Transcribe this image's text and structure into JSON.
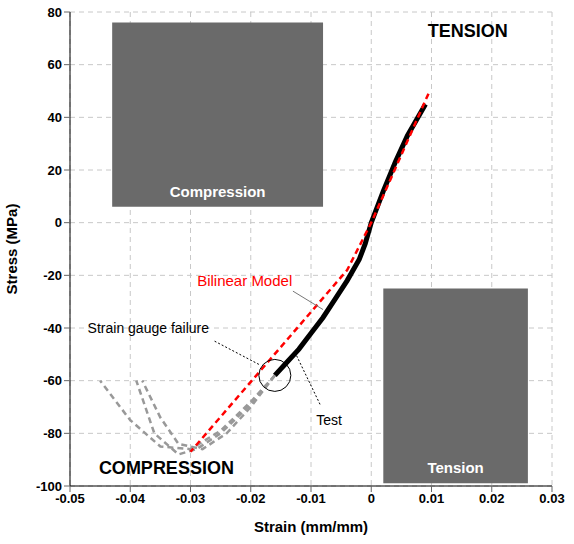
{
  "chart_data": {
    "type": "line",
    "xlabel": "Strain (mm/mm)",
    "ylabel": "Stress (MPa)",
    "xlim": [
      -0.05,
      0.03
    ],
    "ylim": [
      -100,
      80
    ],
    "xticks": [
      -0.05,
      -0.04,
      -0.03,
      -0.02,
      -0.01,
      0,
      0.01,
      0.02,
      0.03
    ],
    "yticks": [
      -100,
      -80,
      -60,
      -40,
      -20,
      0,
      20,
      40,
      60,
      80
    ],
    "grid": true,
    "series": [
      {
        "name": "Test",
        "color": "#000000",
        "line_style": "solid",
        "x": [
          0.009,
          0.008,
          0.006,
          0.004,
          0.002,
          0,
          -0.001,
          -0.002,
          -0.004,
          -0.006,
          -0.008,
          -0.01,
          -0.012,
          -0.014,
          -0.016
        ],
        "values": [
          45,
          41,
          33,
          23,
          12,
          0,
          -8,
          -14,
          -22,
          -29,
          -36,
          -42,
          -48,
          -53,
          -58
        ]
      },
      {
        "color": "#999999",
        "line_style": "dashed",
        "x": [
          -0.016,
          -0.02,
          -0.025,
          -0.03,
          -0.035,
          -0.04,
          -0.045
        ],
        "values": [
          -58,
          -68,
          -79,
          -86,
          -85,
          -75,
          -60
        ]
      },
      {
        "color": "#999999",
        "line_style": "dashed",
        "x": [
          -0.016,
          -0.02,
          -0.025,
          -0.029,
          -0.032,
          -0.036,
          -0.039
        ],
        "values": [
          -58,
          -69,
          -80,
          -86,
          -88,
          -80,
          -60
        ]
      },
      {
        "color": "#999999",
        "line_style": "dashed",
        "x": [
          -0.016,
          -0.02,
          -0.024,
          -0.028,
          -0.032,
          -0.035,
          -0.038
        ],
        "values": [
          -58,
          -70,
          -80,
          -86,
          -84,
          -74,
          -60
        ]
      },
      {
        "name": "Bilinear Model",
        "color": "#ff0000",
        "line_style": "dashed",
        "x": [
          0.0095,
          0,
          -0.004,
          -0.03
        ],
        "values": [
          49,
          0,
          -18,
          -87
        ]
      }
    ],
    "annotations": [
      "TENSION",
      "COMPRESSION",
      "Strain gauge failure",
      "Compression",
      "Tension"
    ]
  }
}
